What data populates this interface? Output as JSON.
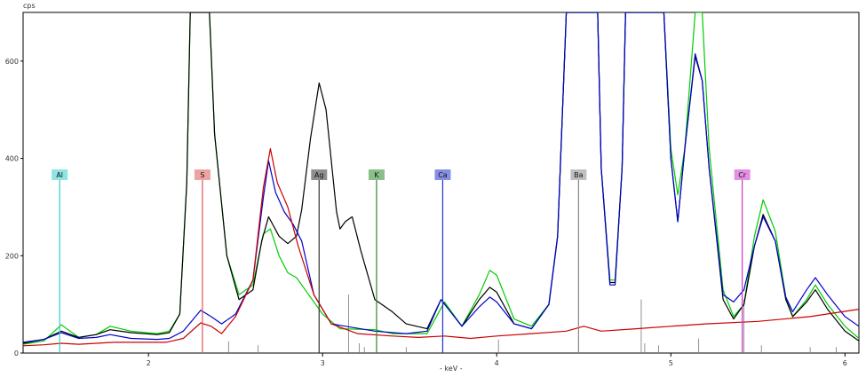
{
  "chart_data": {
    "type": "line",
    "xlabel": "- keV -",
    "ylabel": "cps",
    "xlim": [
      1.28,
      6.08
    ],
    "ylim": [
      0,
      700
    ],
    "x_ticks": [
      2,
      3,
      4,
      5,
      6
    ],
    "y_ticks": [
      0,
      200,
      400,
      600
    ],
    "grid": false,
    "series": [
      {
        "color": "#00cc00",
        "points": [
          [
            1.28,
            18
          ],
          [
            1.4,
            25
          ],
          [
            1.5,
            58
          ],
          [
            1.6,
            32
          ],
          [
            1.7,
            38
          ],
          [
            1.78,
            55
          ],
          [
            1.9,
            45
          ],
          [
            2.05,
            40
          ],
          [
            2.12,
            45
          ],
          [
            2.18,
            80
          ],
          [
            2.22,
            350
          ],
          [
            2.24,
            700
          ],
          [
            2.35,
            700
          ],
          [
            2.38,
            450
          ],
          [
            2.45,
            200
          ],
          [
            2.52,
            120
          ],
          [
            2.6,
            140
          ],
          [
            2.66,
            245
          ],
          [
            2.7,
            255
          ],
          [
            2.75,
            200
          ],
          [
            2.8,
            165
          ],
          [
            2.85,
            155
          ],
          [
            2.9,
            130
          ],
          [
            3.0,
            80
          ],
          [
            3.1,
            50
          ],
          [
            3.3,
            48
          ],
          [
            3.4,
            40
          ],
          [
            3.6,
            40
          ],
          [
            3.7,
            105
          ],
          [
            3.8,
            55
          ],
          [
            3.9,
            120
          ],
          [
            3.96,
            170
          ],
          [
            4.0,
            160
          ],
          [
            4.1,
            70
          ],
          [
            4.2,
            55
          ],
          [
            4.3,
            100
          ],
          [
            4.35,
            240
          ],
          [
            4.4,
            700
          ],
          [
            4.58,
            700
          ],
          [
            4.6,
            380
          ],
          [
            4.65,
            150
          ],
          [
            4.68,
            150
          ],
          [
            4.72,
            380
          ],
          [
            4.74,
            700
          ],
          [
            4.96,
            700
          ],
          [
            5.0,
            420
          ],
          [
            5.04,
            325
          ],
          [
            5.08,
            420
          ],
          [
            5.14,
            700
          ],
          [
            5.18,
            700
          ],
          [
            5.22,
            420
          ],
          [
            5.3,
            130
          ],
          [
            5.36,
            75
          ],
          [
            5.42,
            100
          ],
          [
            5.48,
            240
          ],
          [
            5.53,
            315
          ],
          [
            5.6,
            250
          ],
          [
            5.66,
            115
          ],
          [
            5.7,
            75
          ],
          [
            5.78,
            110
          ],
          [
            5.83,
            140
          ],
          [
            5.9,
            100
          ],
          [
            6.0,
            55
          ],
          [
            6.08,
            30
          ]
        ]
      },
      {
        "color": "#000000",
        "points": [
          [
            1.28,
            20
          ],
          [
            1.4,
            28
          ],
          [
            1.5,
            45
          ],
          [
            1.6,
            32
          ],
          [
            1.7,
            38
          ],
          [
            1.78,
            48
          ],
          [
            1.9,
            42
          ],
          [
            2.05,
            38
          ],
          [
            2.12,
            42
          ],
          [
            2.18,
            80
          ],
          [
            2.22,
            350
          ],
          [
            2.24,
            700
          ],
          [
            2.35,
            700
          ],
          [
            2.38,
            450
          ],
          [
            2.45,
            200
          ],
          [
            2.52,
            110
          ],
          [
            2.6,
            130
          ],
          [
            2.65,
            230
          ],
          [
            2.69,
            280
          ],
          [
            2.75,
            240
          ],
          [
            2.8,
            225
          ],
          [
            2.85,
            240
          ],
          [
            2.88,
            295
          ],
          [
            2.93,
            440
          ],
          [
            2.98,
            555
          ],
          [
            3.02,
            500
          ],
          [
            3.08,
            290
          ],
          [
            3.1,
            255
          ],
          [
            3.13,
            270
          ],
          [
            3.17,
            280
          ],
          [
            3.22,
            210
          ],
          [
            3.3,
            110
          ],
          [
            3.4,
            85
          ],
          [
            3.48,
            60
          ],
          [
            3.6,
            50
          ],
          [
            3.68,
            110
          ],
          [
            3.8,
            55
          ],
          [
            3.9,
            110
          ],
          [
            3.96,
            135
          ],
          [
            4.0,
            125
          ],
          [
            4.1,
            60
          ],
          [
            4.2,
            50
          ],
          [
            4.3,
            100
          ],
          [
            4.35,
            240
          ],
          [
            4.4,
            700
          ],
          [
            4.58,
            700
          ],
          [
            4.6,
            380
          ],
          [
            4.65,
            145
          ],
          [
            4.68,
            145
          ],
          [
            4.72,
            380
          ],
          [
            4.74,
            700
          ],
          [
            4.96,
            700
          ],
          [
            5.0,
            400
          ],
          [
            5.04,
            270
          ],
          [
            5.08,
            420
          ],
          [
            5.14,
            610
          ],
          [
            5.18,
            560
          ],
          [
            5.22,
            380
          ],
          [
            5.3,
            110
          ],
          [
            5.36,
            70
          ],
          [
            5.42,
            100
          ],
          [
            5.48,
            220
          ],
          [
            5.53,
            285
          ],
          [
            5.6,
            230
          ],
          [
            5.66,
            110
          ],
          [
            5.7,
            75
          ],
          [
            5.78,
            105
          ],
          [
            5.83,
            130
          ],
          [
            5.9,
            90
          ],
          [
            6.0,
            45
          ],
          [
            6.08,
            25
          ]
        ]
      },
      {
        "color": "#0000cc",
        "points": [
          [
            1.28,
            22
          ],
          [
            1.4,
            28
          ],
          [
            1.5,
            42
          ],
          [
            1.6,
            30
          ],
          [
            1.7,
            32
          ],
          [
            1.78,
            38
          ],
          [
            1.9,
            30
          ],
          [
            2.05,
            28
          ],
          [
            2.12,
            30
          ],
          [
            2.2,
            45
          ],
          [
            2.3,
            88
          ],
          [
            2.36,
            75
          ],
          [
            2.42,
            60
          ],
          [
            2.5,
            80
          ],
          [
            2.6,
            150
          ],
          [
            2.66,
            320
          ],
          [
            2.69,
            395
          ],
          [
            2.73,
            330
          ],
          [
            2.78,
            290
          ],
          [
            2.83,
            265
          ],
          [
            2.88,
            230
          ],
          [
            2.95,
            120
          ],
          [
            3.05,
            60
          ],
          [
            3.3,
            45
          ],
          [
            3.48,
            40
          ],
          [
            3.6,
            45
          ],
          [
            3.68,
            110
          ],
          [
            3.8,
            55
          ],
          [
            3.9,
            95
          ],
          [
            3.96,
            115
          ],
          [
            4.0,
            105
          ],
          [
            4.1,
            60
          ],
          [
            4.2,
            50
          ],
          [
            4.3,
            100
          ],
          [
            4.35,
            240
          ],
          [
            4.4,
            700
          ],
          [
            4.58,
            700
          ],
          [
            4.6,
            380
          ],
          [
            4.65,
            140
          ],
          [
            4.68,
            140
          ],
          [
            4.72,
            380
          ],
          [
            4.74,
            700
          ],
          [
            4.96,
            700
          ],
          [
            5.0,
            400
          ],
          [
            5.04,
            270
          ],
          [
            5.08,
            420
          ],
          [
            5.14,
            615
          ],
          [
            5.18,
            560
          ],
          [
            5.22,
            380
          ],
          [
            5.3,
            120
          ],
          [
            5.36,
            105
          ],
          [
            5.42,
            130
          ],
          [
            5.48,
            220
          ],
          [
            5.53,
            280
          ],
          [
            5.6,
            230
          ],
          [
            5.66,
            115
          ],
          [
            5.7,
            85
          ],
          [
            5.78,
            130
          ],
          [
            5.83,
            155
          ],
          [
            5.9,
            120
          ],
          [
            6.0,
            75
          ],
          [
            6.08,
            55
          ]
        ]
      },
      {
        "color": "#cc0000",
        "points": [
          [
            1.28,
            15
          ],
          [
            1.4,
            17
          ],
          [
            1.5,
            20
          ],
          [
            1.6,
            18
          ],
          [
            1.8,
            22
          ],
          [
            2.1,
            22
          ],
          [
            2.2,
            30
          ],
          [
            2.3,
            62
          ],
          [
            2.36,
            55
          ],
          [
            2.42,
            40
          ],
          [
            2.5,
            75
          ],
          [
            2.6,
            150
          ],
          [
            2.66,
            340
          ],
          [
            2.7,
            420
          ],
          [
            2.74,
            350
          ],
          [
            2.8,
            300
          ],
          [
            2.86,
            220
          ],
          [
            2.95,
            120
          ],
          [
            3.05,
            60
          ],
          [
            3.2,
            40
          ],
          [
            3.4,
            35
          ],
          [
            3.55,
            32
          ],
          [
            3.7,
            35
          ],
          [
            3.85,
            30
          ],
          [
            4.0,
            35
          ],
          [
            4.2,
            40
          ],
          [
            4.4,
            45
          ],
          [
            4.5,
            55
          ],
          [
            4.6,
            45
          ],
          [
            4.8,
            50
          ],
          [
            5.0,
            55
          ],
          [
            5.2,
            60
          ],
          [
            5.5,
            65
          ],
          [
            5.8,
            75
          ],
          [
            6.08,
            90
          ]
        ]
      }
    ],
    "markers": [
      {
        "label": "Al",
        "x": 1.49,
        "color": "#33cccc"
      },
      {
        "label": "S",
        "x": 2.31,
        "color": "#e05555"
      },
      {
        "label": "Ag",
        "x": 2.98,
        "color": "#333333"
      },
      {
        "label": "K",
        "x": 3.31,
        "color": "#2a8a2a"
      },
      {
        "label": "Ca",
        "x": 3.69,
        "color": "#2233cc"
      },
      {
        "label": "Ba",
        "x": 4.47,
        "color": "#888888"
      },
      {
        "label": "Cr",
        "x": 5.41,
        "color": "#cc33cc"
      }
    ]
  }
}
